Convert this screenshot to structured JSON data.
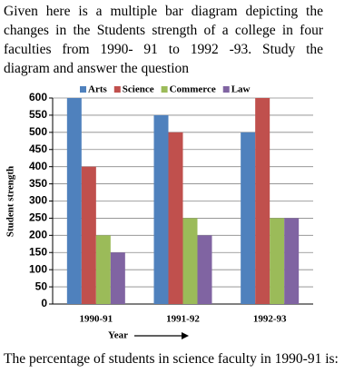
{
  "intro": [
    "Given here is a multiple bar diagram depicting the",
    "changes in the Students strength of a college in four",
    "faculties from 1990- 91 to 1992 -93. Study the",
    "diagram and answer the question"
  ],
  "chart_data": {
    "type": "bar",
    "categories": [
      "1990-91",
      "1991-92",
      "1992-93"
    ],
    "series": [
      {
        "name": "Arts",
        "color": "#4f81bd",
        "values": [
          600,
          550,
          500
        ]
      },
      {
        "name": "Science",
        "color": "#c0504d",
        "values": [
          400,
          500,
          600
        ]
      },
      {
        "name": "Commerce",
        "color": "#9bbb59",
        "values": [
          200,
          250,
          250
        ]
      },
      {
        "name": "Law",
        "color": "#8064a2",
        "values": [
          150,
          200,
          250
        ]
      }
    ],
    "ylim": [
      0,
      600
    ],
    "yticks": [
      0,
      50,
      100,
      150,
      200,
      250,
      300,
      350,
      400,
      450,
      500,
      550,
      600
    ],
    "grid": true,
    "legend": "top",
    "ylabel": "Student strength",
    "xlabel": "Year"
  },
  "question": "The percentage of students in science faculty in 1990-91 is:"
}
